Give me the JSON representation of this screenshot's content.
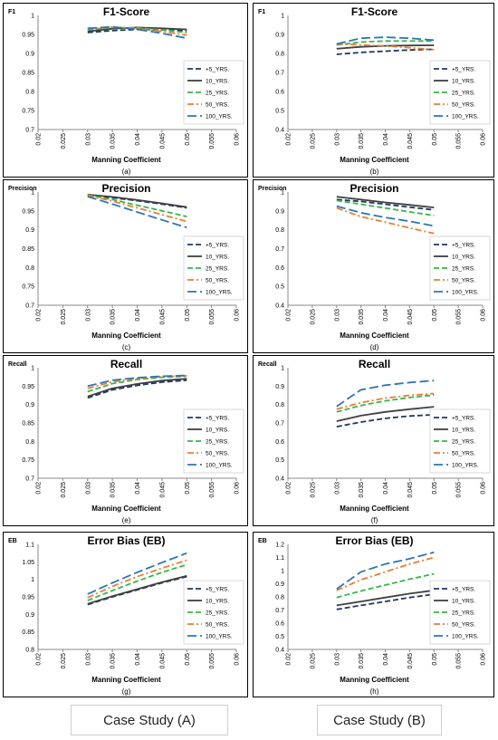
{
  "footer": {
    "left": "Case Study (A)",
    "right": "Case Study  (B)"
  },
  "legend_styles": {
    "5 YRS.": {
      "color": "#1f3864",
      "dash": "6,3"
    },
    "10 YRS.": {
      "color": "#404040",
      "dash": ""
    },
    "25 YRS.": {
      "color": "#39b54a",
      "dash": "6,3"
    },
    "50 YRS.": {
      "color": "#ed7d31",
      "dash": "7,3,2,3"
    },
    "100 YRS.": {
      "color": "#2e75b6",
      "dash": "10,4"
    }
  },
  "chart_data": [
    {
      "type": "line",
      "title": "F1-Score",
      "ylabel": "F1",
      "xlabel": "Manning Coefficient",
      "caption": "(a)",
      "x": [
        0.03,
        0.035,
        0.04,
        0.045,
        0.05
      ],
      "xlim": [
        0.02,
        0.06
      ],
      "xticks": [
        "0.02",
        "0.025",
        "0.03",
        "0.035",
        "0.04",
        "0.045",
        "0.05",
        "0.055",
        "0.06"
      ],
      "ylim": [
        0.7,
        1.0
      ],
      "yticks": [
        "0.7",
        "0.75",
        "0.8",
        "0.85",
        "0.9",
        "0.95",
        "1"
      ],
      "legend": [
        "+5_YRS.",
        "10_YRS.",
        "25_YRS.",
        "50_YRS.",
        "100_YRS."
      ],
      "series": [
        {
          "name": "+5_YRS.",
          "values": [
            0.955,
            0.96,
            0.963,
            0.962,
            0.96
          ]
        },
        {
          "name": "10_YRS.",
          "values": [
            0.958,
            0.965,
            0.968,
            0.966,
            0.963
          ]
        },
        {
          "name": "25_YRS.",
          "values": [
            0.962,
            0.968,
            0.967,
            0.962,
            0.955
          ]
        },
        {
          "name": "50_YRS.",
          "values": [
            0.964,
            0.969,
            0.966,
            0.958,
            0.948
          ]
        },
        {
          "name": "100_YRS.",
          "values": [
            0.966,
            0.97,
            0.963,
            0.953,
            0.94
          ]
        }
      ]
    },
    {
      "type": "line",
      "title": "F1-Score",
      "ylabel": "F1",
      "xlabel": "Manning Coefficient",
      "caption": "(b)",
      "x": [
        0.03,
        0.035,
        0.04,
        0.045,
        0.05
      ],
      "xlim": [
        0.02,
        0.06
      ],
      "xticks": [
        "0.02",
        "0.025",
        "0.03",
        "0.035",
        "0.04",
        "0.045",
        "0.05",
        "0.055",
        "0.06"
      ],
      "ylim": [
        0.4,
        1.0
      ],
      "yticks": [
        "0.4",
        "0.5",
        "0.6",
        "0.7",
        "0.8",
        "0.9",
        "1"
      ],
      "legend": [
        "+5_YRS.",
        "10_YRS.",
        "25_YRS.",
        "50_YRS.",
        "100_YRS."
      ],
      "series": [
        {
          "name": "+5_YRS.",
          "values": [
            0.795,
            0.805,
            0.812,
            0.818,
            0.822
          ]
        },
        {
          "name": "10_YRS.",
          "values": [
            0.825,
            0.835,
            0.84,
            0.842,
            0.843
          ]
        },
        {
          "name": "25_YRS.",
          "values": [
            0.845,
            0.86,
            0.865,
            0.865,
            0.865
          ]
        },
        {
          "name": "50_YRS.",
          "values": [
            0.85,
            0.845,
            0.84,
            0.83,
            0.82
          ]
        },
        {
          "name": "100_YRS.",
          "values": [
            0.85,
            0.88,
            0.885,
            0.88,
            0.87
          ]
        }
      ]
    },
    {
      "type": "line",
      "title": "Precision",
      "ylabel": "Precision",
      "xlabel": "Manning Coefficient",
      "caption": "(c)",
      "x": [
        0.03,
        0.035,
        0.04,
        0.045,
        0.05
      ],
      "xlim": [
        0.02,
        0.06
      ],
      "xticks": [
        "0.02",
        "0.025",
        "0.03",
        "0.035",
        "0.04",
        "0.045",
        "0.05",
        "0.055",
        "0.06"
      ],
      "ylim": [
        0.7,
        1.0
      ],
      "yticks": [
        "0.7",
        "0.75",
        "0.8",
        "0.85",
        "0.9",
        "0.95",
        "1"
      ],
      "legend": [
        "+5_YRS.",
        "10_YRS.",
        "25_YRS.",
        "50_YRS.",
        "100_YRS."
      ],
      "series": [
        {
          "name": "+5_YRS.",
          "values": [
            0.993,
            0.985,
            0.977,
            0.968,
            0.958
          ]
        },
        {
          "name": "10_YRS.",
          "values": [
            0.993,
            0.987,
            0.979,
            0.97,
            0.96
          ]
        },
        {
          "name": "25_YRS.",
          "values": [
            0.992,
            0.98,
            0.965,
            0.95,
            0.935
          ]
        },
        {
          "name": "50_YRS.",
          "values": [
            0.991,
            0.976,
            0.958,
            0.94,
            0.922
          ]
        },
        {
          "name": "100_YRS.",
          "values": [
            0.988,
            0.968,
            0.947,
            0.926,
            0.906
          ]
        }
      ]
    },
    {
      "type": "line",
      "title": "Precision",
      "ylabel": "Precision",
      "xlabel": "Manning Coefficient",
      "caption": "(d)",
      "x": [
        0.03,
        0.035,
        0.04,
        0.045,
        0.05
      ],
      "xlim": [
        0.02,
        0.06
      ],
      "xticks": [
        "0.02",
        "0.025",
        "0.03",
        "0.035",
        "0.04",
        "0.045",
        "0.05",
        "0.055",
        "0.06"
      ],
      "ylim": [
        0.4,
        1.0
      ],
      "yticks": [
        "0.4",
        "0.5",
        "0.6",
        "0.7",
        "0.8",
        "0.9",
        "1"
      ],
      "legend": [
        "+5_YRS.",
        "10_YRS.",
        "25_YRS.",
        "50_YRS.",
        "100_YRS."
      ],
      "series": [
        {
          "name": "+5_YRS.",
          "values": [
            0.96,
            0.95,
            0.935,
            0.92,
            0.905
          ]
        },
        {
          "name": "10_YRS.",
          "values": [
            0.975,
            0.96,
            0.945,
            0.932,
            0.918
          ]
        },
        {
          "name": "25_YRS.",
          "values": [
            0.955,
            0.935,
            0.915,
            0.895,
            0.875
          ]
        },
        {
          "name": "50_YRS.",
          "values": [
            0.915,
            0.87,
            0.84,
            0.81,
            0.78
          ]
        },
        {
          "name": "100_YRS.",
          "values": [
            0.925,
            0.89,
            0.865,
            0.845,
            0.82
          ]
        }
      ]
    },
    {
      "type": "line",
      "title": "Recall",
      "ylabel": "Recall",
      "xlabel": "Manning Coefficient",
      "caption": "(e)",
      "x": [
        0.03,
        0.035,
        0.04,
        0.045,
        0.05
      ],
      "xlim": [
        0.02,
        0.06
      ],
      "xticks": [
        "0.02",
        "0.025",
        "0.03",
        "0.035",
        "0.04",
        "0.045",
        "0.05",
        "0.055",
        "0.06"
      ],
      "ylim": [
        0.7,
        1.0
      ],
      "yticks": [
        "0.7",
        "0.75",
        "0.8",
        "0.85",
        "0.9",
        "0.95",
        "1"
      ],
      "legend": [
        "+5_YRS.",
        "10_YRS.",
        "25_YRS.",
        "50_YRS.",
        "100_YRS."
      ],
      "series": [
        {
          "name": "+5_YRS.",
          "values": [
            0.918,
            0.94,
            0.952,
            0.961,
            0.966
          ]
        },
        {
          "name": "10_YRS.",
          "values": [
            0.922,
            0.944,
            0.956,
            0.965,
            0.97
          ]
        },
        {
          "name": "25_YRS.",
          "values": [
            0.935,
            0.957,
            0.968,
            0.974,
            0.977
          ]
        },
        {
          "name": "50_YRS.",
          "values": [
            0.944,
            0.962,
            0.971,
            0.976,
            0.978
          ]
        },
        {
          "name": "100_YRS.",
          "values": [
            0.95,
            0.966,
            0.973,
            0.977,
            0.979
          ]
        }
      ]
    },
    {
      "type": "line",
      "title": "Recall",
      "ylabel": "Recall",
      "xlabel": "Manning Coefficient",
      "caption": "(f)",
      "x": [
        0.03,
        0.035,
        0.04,
        0.045,
        0.05
      ],
      "xlim": [
        0.02,
        0.06
      ],
      "xticks": [
        "0.02",
        "0.025",
        "0.03",
        "0.035",
        "0.04",
        "0.045",
        "0.05",
        "0.055",
        "0.06"
      ],
      "ylim": [
        0.4,
        1.0
      ],
      "yticks": [
        "0.4",
        "0.5",
        "0.6",
        "0.7",
        "0.8",
        "0.9",
        "1"
      ],
      "legend": [
        "+5_YRS.",
        "10_YRS.",
        "25_YRS.",
        "50_YRS.",
        "100_YRS."
      ],
      "series": [
        {
          "name": "+5_YRS.",
          "values": [
            0.68,
            0.705,
            0.725,
            0.738,
            0.745
          ]
        },
        {
          "name": "10_YRS.",
          "values": [
            0.71,
            0.74,
            0.76,
            0.775,
            0.788
          ]
        },
        {
          "name": "25_YRS.",
          "values": [
            0.76,
            0.795,
            0.82,
            0.838,
            0.852
          ]
        },
        {
          "name": "50_YRS.",
          "values": [
            0.775,
            0.81,
            0.835,
            0.85,
            0.86
          ]
        },
        {
          "name": "100_YRS.",
          "values": [
            0.79,
            0.88,
            0.905,
            0.92,
            0.93
          ]
        }
      ]
    },
    {
      "type": "line",
      "title": "Error Bias (EB)",
      "ylabel": "EB",
      "xlabel": "Manning Coefficient",
      "caption": "(g)",
      "x": [
        0.03,
        0.035,
        0.04,
        0.045,
        0.05
      ],
      "xlim": [
        0.02,
        0.06
      ],
      "xticks": [
        "0.02",
        "0.025",
        "0.03",
        "0.035",
        "0.04",
        "0.045",
        "0.05",
        "0.055",
        "0.06"
      ],
      "ylim": [
        0.8,
        1.1
      ],
      "yticks": [
        "0.8",
        "0.85",
        "0.9",
        "0.95",
        "1",
        "1.05",
        "1.1"
      ],
      "legend": [
        "+5_YRS.",
        "10_YRS.",
        "25_YRS.",
        "50_YRS.",
        "100_YRS."
      ],
      "series": [
        {
          "name": "+5_YRS.",
          "values": [
            0.928,
            0.95,
            0.97,
            0.99,
            1.008
          ]
        },
        {
          "name": "10_YRS.",
          "values": [
            0.93,
            0.952,
            0.972,
            0.992,
            1.01
          ]
        },
        {
          "name": "25_YRS.",
          "values": [
            0.94,
            0.968,
            0.995,
            1.02,
            1.042
          ]
        },
        {
          "name": "50_YRS.",
          "values": [
            0.948,
            0.98,
            1.008,
            1.032,
            1.055
          ]
        },
        {
          "name": "100_YRS.",
          "values": [
            0.958,
            0.99,
            1.02,
            1.048,
            1.075
          ]
        }
      ]
    },
    {
      "type": "line",
      "title": "Error Bias (EB)",
      "ylabel": "EB",
      "xlabel": "Manning Coefficient",
      "caption": "(h)",
      "x": [
        0.03,
        0.035,
        0.04,
        0.045,
        0.05
      ],
      "xlim": [
        0.02,
        0.06
      ],
      "xticks": [
        "0.02",
        "0.025",
        "0.03",
        "0.035",
        "0.04",
        "0.045",
        "0.05",
        "0.055",
        "0.06"
      ],
      "ylim": [
        0.4,
        1.2
      ],
      "yticks": [
        "0.4",
        "0.5",
        "0.6",
        "0.7",
        "0.8",
        "0.9",
        "1",
        "1.1",
        "1.2"
      ],
      "legend": [
        "+5_YRS.",
        "10_YRS.",
        "25_YRS.",
        "50_YRS.",
        "100_YRS."
      ],
      "series": [
        {
          "name": "+5_YRS.",
          "values": [
            0.705,
            0.735,
            0.765,
            0.795,
            0.82
          ]
        },
        {
          "name": "10_YRS.",
          "values": [
            0.735,
            0.765,
            0.795,
            0.825,
            0.85
          ]
        },
        {
          "name": "25_YRS.",
          "values": [
            0.795,
            0.845,
            0.89,
            0.935,
            0.975
          ]
        },
        {
          "name": "50_YRS.",
          "values": [
            0.85,
            0.93,
            0.99,
            1.05,
            1.1
          ]
        },
        {
          "name": "100_YRS.",
          "values": [
            0.86,
            0.99,
            1.05,
            1.09,
            1.14
          ]
        }
      ]
    }
  ]
}
